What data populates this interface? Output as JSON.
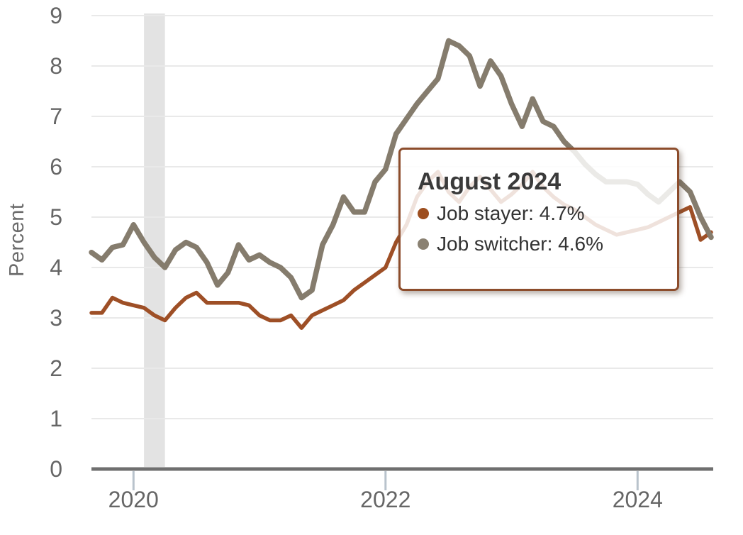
{
  "figure": {
    "ylabel": "Percent",
    "background": "#ffffff"
  },
  "chart_data": {
    "type": "line",
    "title": "",
    "xlabel": "",
    "ylabel": "Percent",
    "x_start": "2019-09",
    "x_end": "2024-08",
    "x_frequency": "monthly",
    "xtick_labels": [
      "2020",
      "2022",
      "2024"
    ],
    "xtick_month_indices": [
      4,
      28,
      52
    ],
    "ylim": [
      0,
      9
    ],
    "yticks": [
      0,
      1,
      2,
      3,
      4,
      5,
      6,
      7,
      8,
      9
    ],
    "grid": "horizontal",
    "recession_band": {
      "from": "2020-02",
      "to": "2020-04",
      "month_indices": [
        5,
        7
      ]
    },
    "series": [
      {
        "name": "Job stayer",
        "id": "job-stayer",
        "color": "#9e4f26",
        "width": 5.5,
        "values": [
          3.1,
          3.1,
          3.4,
          3.3,
          3.25,
          3.2,
          3.05,
          2.95,
          3.2,
          3.4,
          3.5,
          3.3,
          3.3,
          3.3,
          3.3,
          3.25,
          3.05,
          2.95,
          2.95,
          3.05,
          2.8,
          3.05,
          3.15,
          3.25,
          3.35,
          3.55,
          3.7,
          3.85,
          4.0,
          4.5,
          4.85,
          5.4,
          5.7,
          5.9,
          5.5,
          5.3,
          5.6,
          5.8,
          5.55,
          5.3,
          5.45,
          5.65,
          5.9,
          5.6,
          5.4,
          5.25,
          5.15,
          5.0,
          4.85,
          4.75,
          4.65,
          4.7,
          4.75,
          4.8,
          4.9,
          5.0,
          5.1,
          5.2,
          4.55,
          4.7
        ]
      },
      {
        "name": "Job switcher",
        "id": "job-switcher",
        "color": "#857c6d",
        "width": 7.5,
        "values": [
          4.3,
          4.15,
          4.4,
          4.45,
          4.85,
          4.5,
          4.2,
          4.0,
          4.35,
          4.5,
          4.4,
          4.1,
          3.65,
          3.9,
          4.45,
          4.15,
          4.25,
          4.1,
          4.0,
          3.8,
          3.4,
          3.55,
          4.45,
          4.85,
          5.4,
          5.1,
          5.1,
          5.7,
          5.95,
          6.65,
          6.95,
          7.25,
          7.5,
          7.75,
          8.5,
          8.4,
          8.2,
          7.6,
          8.1,
          7.8,
          7.25,
          6.8,
          7.35,
          6.9,
          6.8,
          6.5,
          6.3,
          6.05,
          5.85,
          5.7,
          5.7,
          5.7,
          5.65,
          5.45,
          5.3,
          5.5,
          5.7,
          5.5,
          5.0,
          4.6
        ]
      }
    ]
  },
  "tooltip": {
    "title": "August 2024",
    "items": [
      {
        "label": "Job stayer",
        "value": "4.7%",
        "text": "Job stayer: 4.7%",
        "bullet_color": "#9d4e1f"
      },
      {
        "label": "Job switcher",
        "value": "4.6%",
        "text": "Job switcher: 4.6%",
        "bullet_color": "#8a8172"
      }
    ],
    "border_color": "#8c4c2b"
  },
  "colors": {
    "axis": "#6f6f6f",
    "gridline": "#e9e9e9",
    "year_tick": "#b9c3cc",
    "recession_band": "#e3e3e3",
    "tick_text": "#666666"
  }
}
